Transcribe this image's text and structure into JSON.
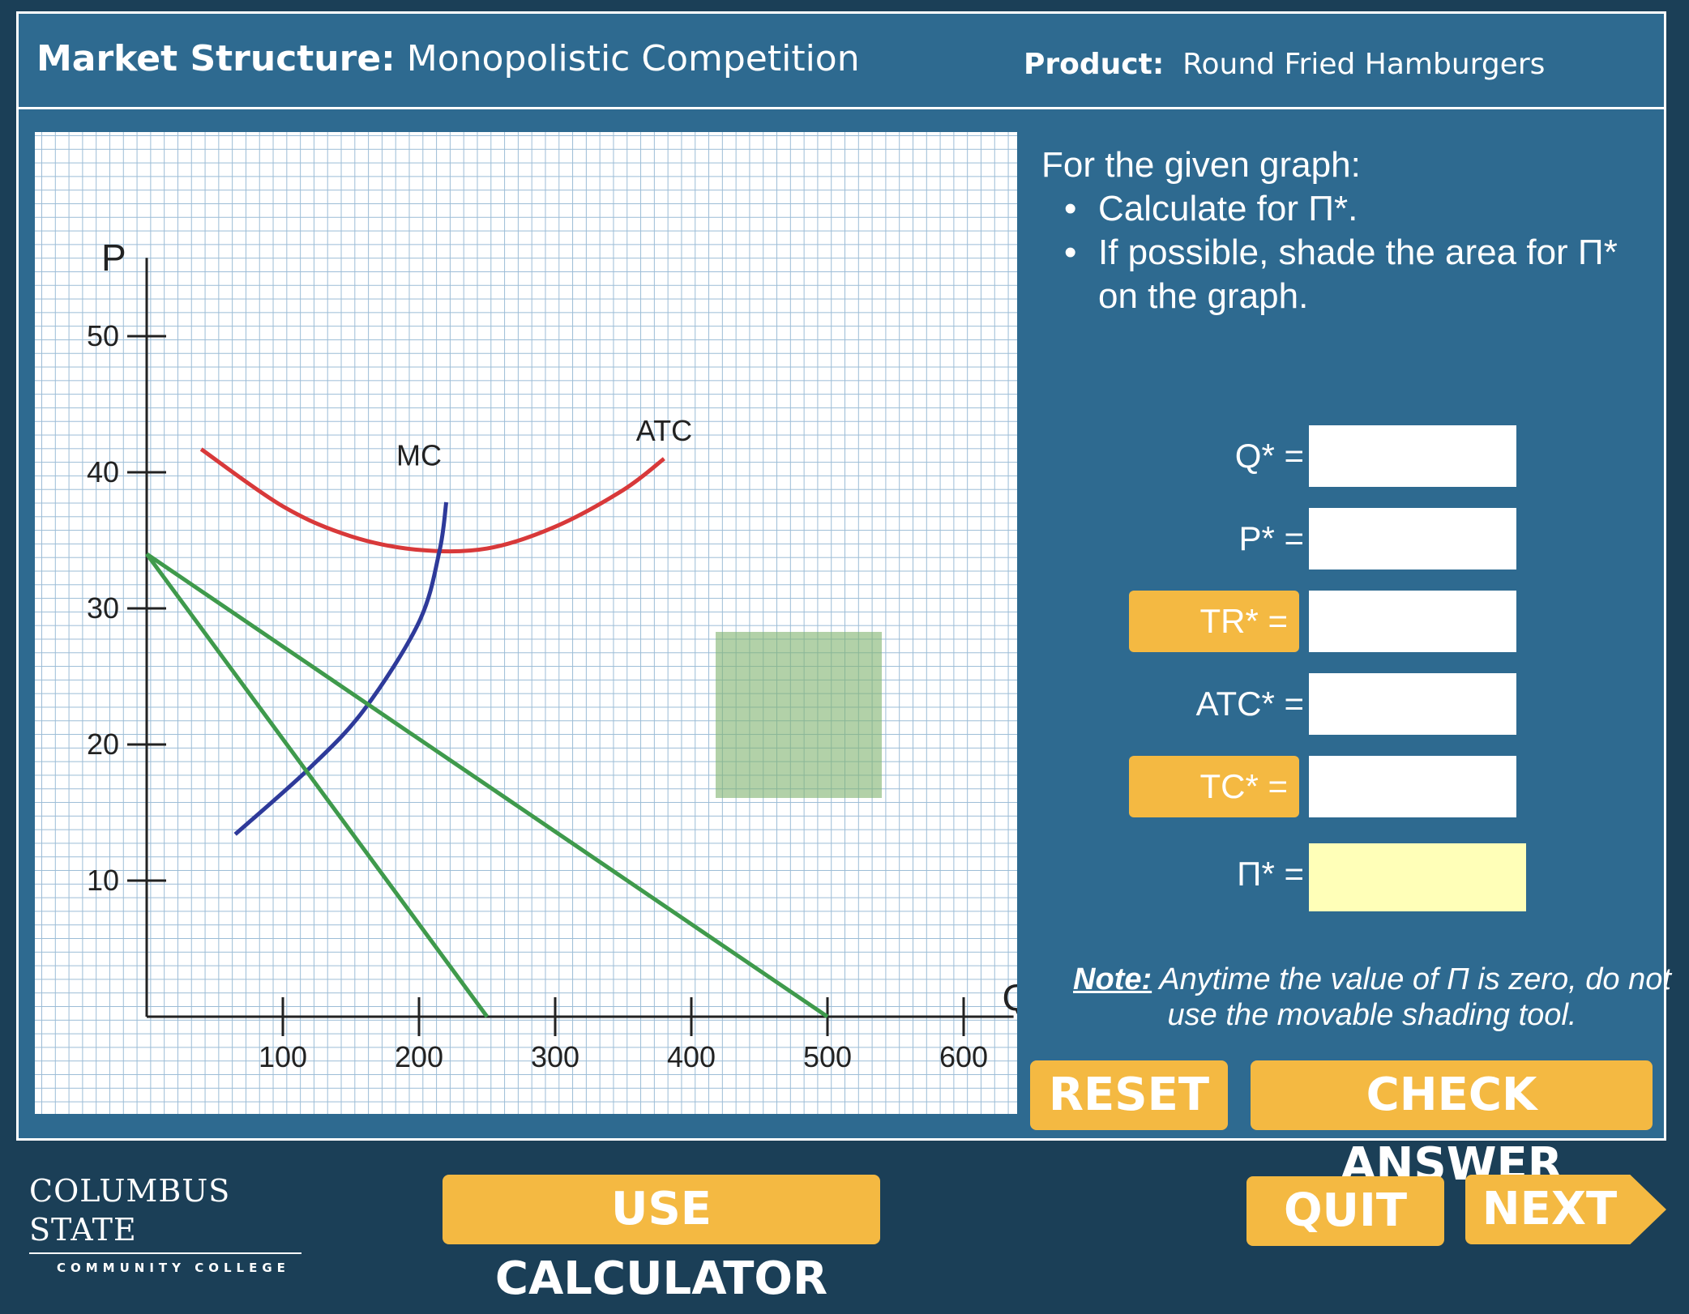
{
  "header": {
    "market_label": "Market Structure:",
    "market_value": "Monopolistic Competition",
    "product_label": "Product:",
    "product_value": "Round Fried Hamburgers"
  },
  "instructions": {
    "intro": "For the given graph:",
    "bullets": [
      "Calculate for Π*.",
      "If possible, shade the area for Π* on the graph."
    ]
  },
  "answers": [
    {
      "label": "Q* =",
      "value": "",
      "highlighted": false
    },
    {
      "label": "P* =",
      "value": "",
      "highlighted": false
    },
    {
      "label": "TR* =",
      "value": "",
      "highlighted": true
    },
    {
      "label": "ATC* =",
      "value": "",
      "highlighted": false
    },
    {
      "label": "TC* =",
      "value": "",
      "highlighted": true
    },
    {
      "label": "Π* =",
      "value": "",
      "highlighted": false,
      "active": true
    }
  ],
  "note": {
    "label": "Note:",
    "text": " Anytime the value of Π is zero, do not use the movable shading tool."
  },
  "buttons": {
    "reset": "RESET",
    "check_answer": "CHECK ANSWER",
    "use_calculator": "USE CALCULATOR",
    "quit": "QUIT",
    "next": "NEXT"
  },
  "logo": {
    "name": "COLUMBUS STATE",
    "sub": "COMMUNITY COLLEGE"
  },
  "colors": {
    "panel": "#2e6a90",
    "accent": "#f4b942",
    "mc": "#2e3a9a",
    "atc": "#d8393a",
    "demand": "#3f9a4c",
    "shade": "#7eb26e"
  },
  "chart_data": {
    "type": "line",
    "xlabel": "Q",
    "ylabel": "P",
    "x_ticks": [
      100,
      200,
      300,
      400,
      500,
      600
    ],
    "y_ticks": [
      10,
      20,
      30,
      40,
      50
    ],
    "xlim": [
      0,
      620
    ],
    "ylim": [
      0,
      56
    ],
    "series": [
      {
        "name": "ATC",
        "points": [
          [
            40,
            41.7
          ],
          [
            100,
            37.5
          ],
          [
            150,
            35.3
          ],
          [
            200,
            34.3
          ],
          [
            250,
            34.4
          ],
          [
            300,
            36.0
          ],
          [
            350,
            38.7
          ],
          [
            380,
            41.0
          ]
        ]
      },
      {
        "name": "MC",
        "points": [
          [
            65,
            13.4
          ],
          [
            120,
            18.3
          ],
          [
            160,
            22.6
          ],
          [
            200,
            29.0
          ],
          [
            215,
            34.2
          ],
          [
            220,
            37.8
          ]
        ]
      },
      {
        "name": "",
        "points": [
          [
            0,
            34
          ],
          [
            500,
            0
          ]
        ]
      },
      {
        "name": "",
        "points": [
          [
            0,
            34
          ],
          [
            250,
            0
          ]
        ]
      }
    ]
  }
}
